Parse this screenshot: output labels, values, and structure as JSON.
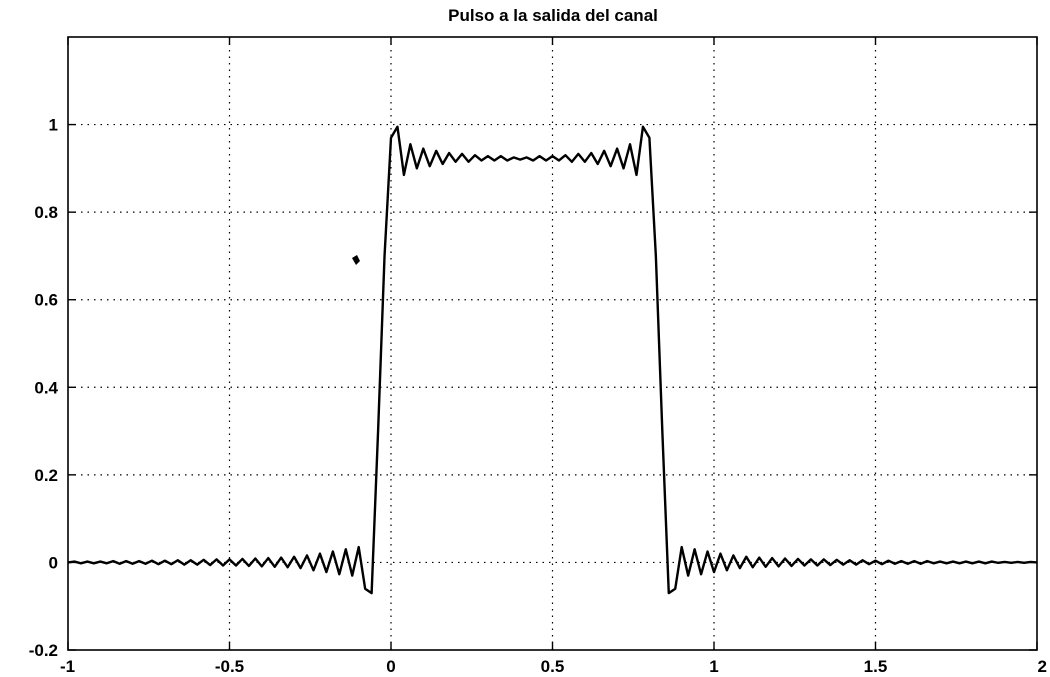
{
  "chart_data": {
    "type": "line",
    "title": "Pulso a la salida del canal",
    "xlabel": "",
    "ylabel": "",
    "xlim": [
      -1,
      2
    ],
    "ylim": [
      -0.2,
      1.2
    ],
    "x_ticks": [
      -1,
      -0.5,
      0,
      0.5,
      1,
      1.5,
      2
    ],
    "x_tick_labels": [
      "-1",
      "-0.5",
      "0",
      "0.5",
      "1",
      "1.5",
      "2"
    ],
    "y_ticks": [
      -0.2,
      0,
      0.2,
      0.4,
      0.6,
      0.8,
      1
    ],
    "y_tick_labels": [
      "-0.2",
      "0",
      "0.2",
      "0.4",
      "0.6",
      "0.8",
      "1"
    ],
    "grid": true,
    "series": [
      {
        "name": "",
        "x": [
          -1,
          -0.98,
          -0.96,
          -0.94,
          -0.92,
          -0.9,
          -0.88,
          -0.86,
          -0.84,
          -0.82,
          -0.8,
          -0.78,
          -0.76,
          -0.74,
          -0.72,
          -0.7,
          -0.68,
          -0.66,
          -0.64,
          -0.62,
          -0.6,
          -0.58,
          -0.56,
          -0.54,
          -0.52,
          -0.5,
          -0.48,
          -0.46,
          -0.44,
          -0.42,
          -0.4,
          -0.38,
          -0.36,
          -0.34,
          -0.32,
          -0.3,
          -0.28,
          -0.26,
          -0.24,
          -0.22,
          -0.2,
          -0.18,
          -0.16,
          -0.14,
          -0.12,
          -0.1,
          -0.08,
          -0.06,
          -0.04,
          -0.02,
          0,
          0.02,
          0.04,
          0.06,
          0.08,
          0.1,
          0.12,
          0.14,
          0.16,
          0.18,
          0.2,
          0.22,
          0.24,
          0.26,
          0.28,
          0.3,
          0.32,
          0.34,
          0.36,
          0.38,
          0.4,
          0.42,
          0.44,
          0.46,
          0.48,
          0.5,
          0.52,
          0.54,
          0.56,
          0.58,
          0.6,
          0.62,
          0.64,
          0.66,
          0.68,
          0.7,
          0.72,
          0.74,
          0.76,
          0.78,
          0.8,
          0.82,
          0.84,
          0.86,
          0.88,
          0.9,
          0.92,
          0.94,
          0.96,
          0.98,
          1,
          1.02,
          1.04,
          1.06,
          1.08,
          1.1,
          1.12,
          1.14,
          1.16,
          1.18,
          1.2,
          1.22,
          1.24,
          1.26,
          1.28,
          1.3,
          1.32,
          1.34,
          1.36,
          1.38,
          1.4,
          1.42,
          1.44,
          1.46,
          1.48,
          1.5,
          1.52,
          1.54,
          1.56,
          1.58,
          1.6,
          1.62,
          1.64,
          1.66,
          1.68,
          1.7,
          1.72,
          1.74,
          1.76,
          1.78,
          1.8,
          1.82,
          1.84,
          1.86,
          1.88,
          1.9,
          1.92,
          1.94,
          1.96,
          1.98,
          2
        ],
        "y": [
          0,
          0.002,
          -0.002,
          0.002,
          -0.002,
          0.002,
          -0.002,
          0.003,
          -0.003,
          0.003,
          -0.003,
          0.003,
          -0.003,
          0.004,
          -0.004,
          0.004,
          -0.004,
          0.005,
          -0.005,
          0.005,
          -0.005,
          0.006,
          -0.006,
          0.007,
          -0.007,
          0.007,
          -0.007,
          0.008,
          -0.008,
          0.009,
          -0.009,
          0.01,
          -0.01,
          0.011,
          -0.011,
          0.013,
          -0.013,
          0.016,
          -0.018,
          0.02,
          -0.022,
          0.025,
          -0.027,
          0.03,
          -0.03,
          0.035,
          -0.06,
          -0.07,
          0.3,
          0.7,
          0.97,
          0.995,
          0.885,
          0.955,
          0.9,
          0.945,
          0.905,
          0.94,
          0.91,
          0.935,
          0.915,
          0.933,
          0.915,
          0.93,
          0.918,
          0.928,
          0.918,
          0.928,
          0.918,
          0.925,
          0.92,
          0.925,
          0.918,
          0.928,
          0.918,
          0.928,
          0.918,
          0.93,
          0.915,
          0.933,
          0.915,
          0.935,
          0.91,
          0.94,
          0.905,
          0.945,
          0.9,
          0.955,
          0.885,
          0.995,
          0.97,
          0.7,
          0.3,
          -0.07,
          -0.06,
          0.035,
          -0.03,
          0.03,
          -0.027,
          0.025,
          -0.022,
          0.02,
          -0.018,
          0.016,
          -0.013,
          0.013,
          -0.011,
          0.011,
          -0.01,
          0.01,
          -0.009,
          0.009,
          -0.008,
          0.008,
          -0.007,
          0.007,
          -0.007,
          0.007,
          -0.006,
          0.006,
          -0.005,
          0.005,
          -0.005,
          0.005,
          -0.004,
          0.004,
          -0.004,
          0.004,
          -0.003,
          0.003,
          -0.003,
          0.003,
          -0.003,
          0.003,
          -0.002,
          0.002,
          -0.002,
          0.002,
          -0.002,
          0.002,
          -0.002,
          0.002,
          -0.002,
          0.002,
          -0.001,
          0.001,
          -0.001,
          0.001,
          -0.001,
          0.001,
          0
        ]
      }
    ],
    "annotations": []
  }
}
